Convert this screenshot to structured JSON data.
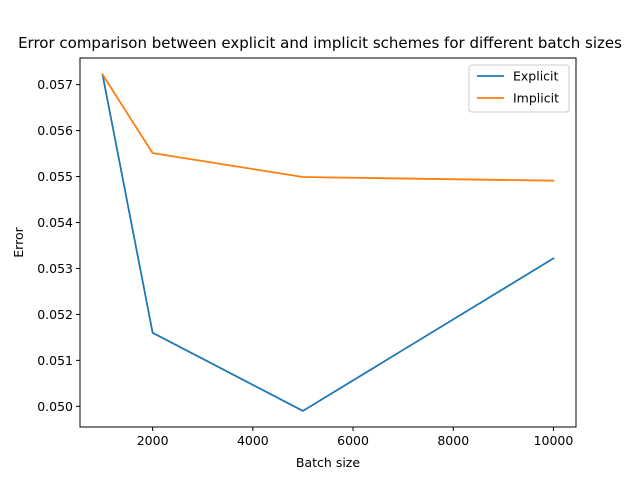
{
  "chart_data": {
    "type": "line",
    "title": "Error comparison between explicit and implicit schemes for different batch sizes",
    "xlabel": "Batch size",
    "ylabel": "Error",
    "x": [
      1000,
      2000,
      5000,
      10000
    ],
    "xlim": [
      550,
      10450
    ],
    "ylim": [
      0.04955,
      0.05758
    ],
    "xticks": [
      2000,
      4000,
      6000,
      8000,
      10000
    ],
    "yticks": [
      0.05,
      0.051,
      0.052,
      0.053,
      0.054,
      0.055,
      0.056,
      0.057
    ],
    "legend_position": "top-right",
    "grid": false,
    "series": [
      {
        "name": "Explicit",
        "color": "#1f77b4",
        "values": [
          0.05722,
          0.0516,
          0.0499,
          0.05322
        ]
      },
      {
        "name": "Implicit",
        "color": "#ff7f0e",
        "values": [
          0.05722,
          0.05551,
          0.05499,
          0.05491
        ]
      }
    ]
  }
}
